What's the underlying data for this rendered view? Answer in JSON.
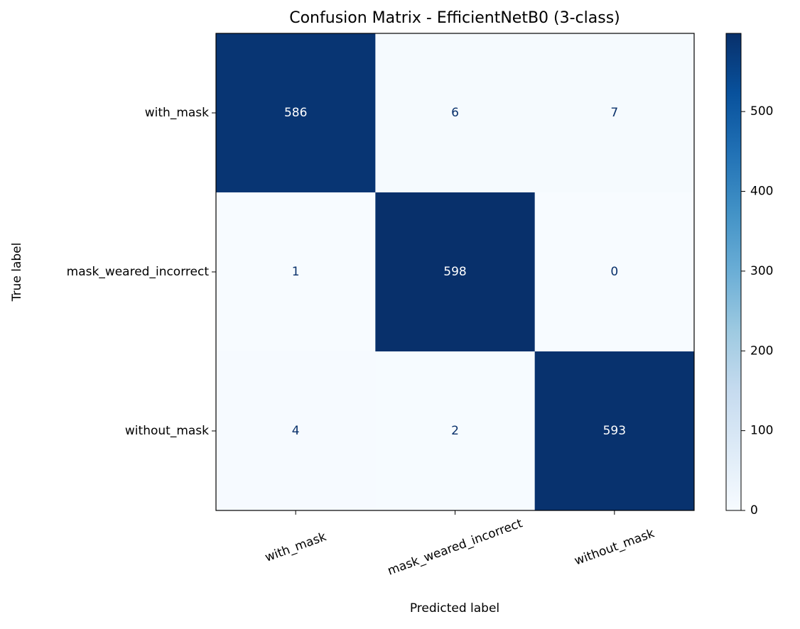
{
  "chart_data": {
    "type": "heatmap",
    "title": "Confusion Matrix - EfficientNetB0 (3-class)",
    "xlabel": "Predicted label",
    "ylabel": "True label",
    "x": [
      "with_mask",
      "mask_weared_incorrect",
      "without_mask"
    ],
    "y": [
      "with_mask",
      "mask_weared_incorrect",
      "without_mask"
    ],
    "values": [
      [
        586,
        6,
        7
      ],
      [
        1,
        598,
        0
      ],
      [
        4,
        2,
        593
      ]
    ],
    "cmap": "Blues",
    "clim": [
      0,
      598
    ],
    "cticks": [
      0,
      100,
      200,
      300,
      400,
      500
    ]
  }
}
